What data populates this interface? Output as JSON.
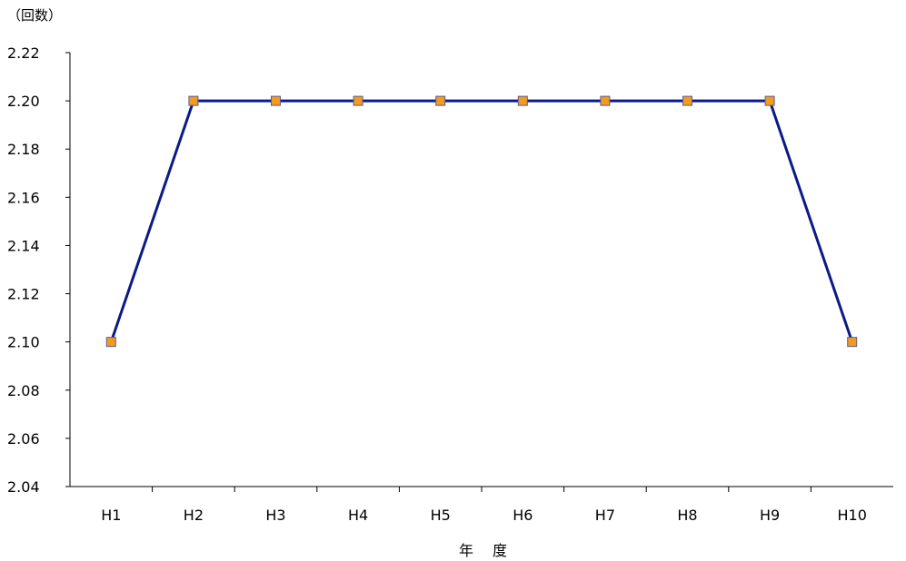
{
  "chart_data": {
    "type": "line",
    "ylabel": "（回数）",
    "xlabel": "年　 度",
    "categories": [
      "H1",
      "H2",
      "H3",
      "H4",
      "H5",
      "H6",
      "H7",
      "H8",
      "H9",
      "H10"
    ],
    "series": [
      {
        "values": [
          2.1,
          2.2,
          2.2,
          2.2,
          2.2,
          2.2,
          2.2,
          2.2,
          2.2,
          2.1
        ]
      }
    ],
    "ylim": [
      2.04,
      2.22
    ],
    "yticks": [
      "2.04",
      "2.06",
      "2.08",
      "2.10",
      "2.12",
      "2.14",
      "2.16",
      "2.18",
      "2.20",
      "2.22"
    ],
    "grid": false,
    "legend": "none",
    "colors": {
      "line": "#0b1a87",
      "marker_fill": "#f39b1b",
      "marker_stroke": "#5b5b9a",
      "axis": "#000000"
    }
  }
}
